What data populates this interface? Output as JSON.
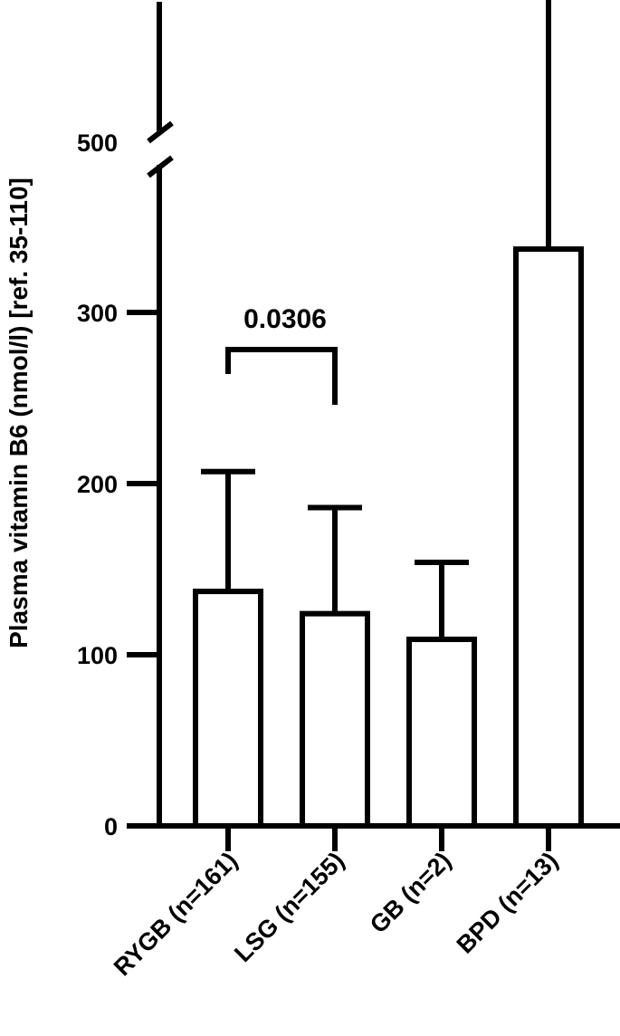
{
  "chart_data": {
    "type": "bar",
    "title": "",
    "xlabel": "",
    "ylabel": "Plasma vitamin B6 (nmol/l) [ref. 35-110]",
    "categories": [
      "RYGB (n=161)",
      "LSG (n=155)",
      "GB (n=2)",
      "BPD (n=13)"
    ],
    "series": [
      {
        "values": [
          137,
          124,
          109,
          337
        ],
        "error_upper": [
          207,
          186,
          154,
          606
        ]
      }
    ],
    "y_axis": {
      "type": "broken",
      "segments": [
        {
          "range": [
            0,
            380
          ],
          "ticks": [
            "0",
            "100",
            "200",
            "300"
          ]
        },
        {
          "range": [
            480,
            620
          ],
          "ticks": [
            "500",
            "600"
          ]
        }
      ],
      "ylim": [
        0,
        620
      ]
    },
    "annotations": [
      {
        "label": "0.0306",
        "between": [
          "RYGB (n=161)",
          "LSG (n=155)"
        ]
      }
    ],
    "grid": false,
    "legend": "none"
  }
}
